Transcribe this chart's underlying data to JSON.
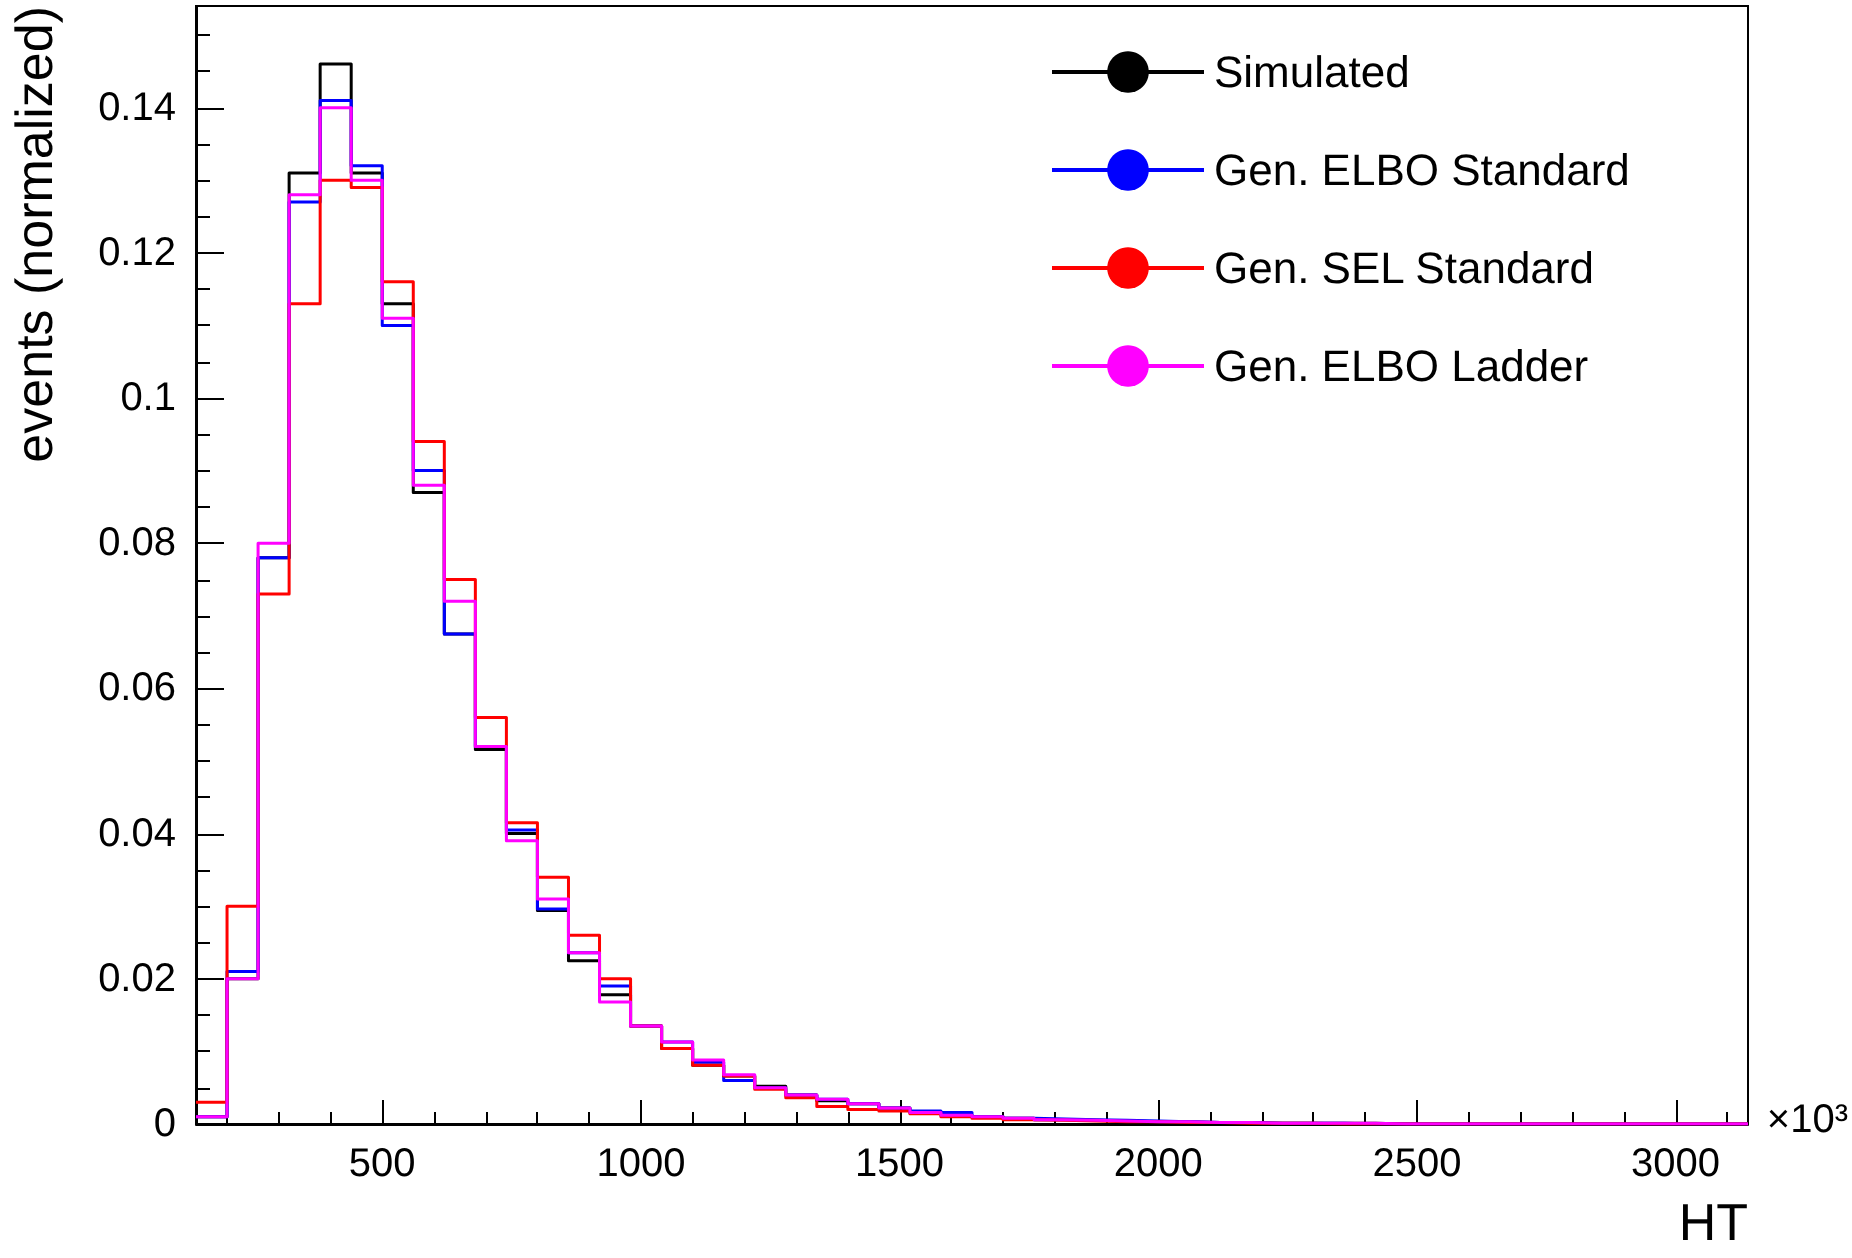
{
  "chart_data": {
    "type": "histogram",
    "xlabel": "HT",
    "ylabel": "events (normalized)",
    "annotations": [
      "×10³"
    ],
    "bins": [
      140,
      200,
      260,
      320,
      380,
      440,
      500,
      560,
      620,
      680,
      740,
      800,
      860,
      920,
      980,
      1040,
      1100,
      1160,
      1220,
      1280,
      1340,
      1400,
      1460,
      1520,
      1580,
      1640,
      1700,
      1760,
      1820,
      1880,
      1940,
      2000,
      2060,
      2120,
      2180,
      2240,
      2300,
      2360,
      2420,
      2480,
      2540,
      2600,
      2660,
      2720,
      2780,
      2840,
      2900,
      2960,
      3020,
      3080,
      3140
    ],
    "series": [
      {
        "name": "Simulated",
        "color": "#000000",
        "values": [
          0.001,
          0.02,
          0.078,
          0.131,
          0.146,
          0.131,
          0.113,
          0.087,
          0.0675,
          0.0516,
          0.04,
          0.0294,
          0.0225,
          0.0178,
          0.0135,
          0.0104,
          0.0081,
          0.0066,
          0.0052,
          0.004,
          0.0032,
          0.0028,
          0.0022,
          0.0016,
          0.0012,
          0.001,
          0.0008,
          0.0006,
          0.0005,
          0.0004,
          0.0003,
          0.0003,
          0.0002,
          0.0002,
          0.0001,
          0.0001,
          0.0001,
          0.0001,
          0,
          0,
          0,
          0,
          0,
          0,
          0,
          0,
          0,
          0,
          0,
          0
        ]
      },
      {
        "name": "Gen. ELBO Standard",
        "color": "#0000ff",
        "values": [
          0.001,
          0.021,
          0.078,
          0.127,
          0.141,
          0.132,
          0.11,
          0.09,
          0.0675,
          0.052,
          0.0405,
          0.0296,
          0.0236,
          0.019,
          0.0135,
          0.0113,
          0.0085,
          0.006,
          0.005,
          0.004,
          0.0034,
          0.0028,
          0.0022,
          0.0018,
          0.0016,
          0.001,
          0.0008,
          0.0007,
          0.0006,
          0.0005,
          0.0004,
          0.0003,
          0.0002,
          0.0002,
          0.0001,
          0.0001,
          0.0001,
          0,
          0,
          0,
          0,
          0,
          0,
          0,
          0,
          0,
          0,
          0,
          0,
          0
        ]
      },
      {
        "name": "Gen. SEL Standard",
        "color": "#ff0000",
        "values": [
          0.003,
          0.03,
          0.073,
          0.113,
          0.13,
          0.129,
          0.116,
          0.094,
          0.075,
          0.056,
          0.0415,
          0.034,
          0.026,
          0.02,
          0.0135,
          0.0104,
          0.0081,
          0.0066,
          0.0048,
          0.0036,
          0.0024,
          0.002,
          0.0018,
          0.0014,
          0.001,
          0.0008,
          0.0006,
          0.0005,
          0.0004,
          0.0003,
          0.0003,
          0.0002,
          0.0002,
          0.0001,
          0.0001,
          0.0001,
          0,
          0,
          0,
          0,
          0,
          0,
          0,
          0,
          0,
          0,
          0,
          0,
          0,
          0
        ]
      },
      {
        "name": "Gen. ELBO Ladder",
        "color": "#ff00ff",
        "values": [
          0.001,
          0.02,
          0.08,
          0.128,
          0.14,
          0.13,
          0.111,
          0.088,
          0.072,
          0.052,
          0.039,
          0.031,
          0.0236,
          0.0168,
          0.0135,
          0.0113,
          0.0088,
          0.0068,
          0.005,
          0.004,
          0.0034,
          0.0028,
          0.0022,
          0.0016,
          0.0012,
          0.001,
          0.0008,
          0.0006,
          0.0005,
          0.0004,
          0.0003,
          0.0003,
          0.0002,
          0.0002,
          0.0001,
          0.0001,
          0.0001,
          0.0001,
          0,
          0,
          0,
          0,
          0,
          0,
          0,
          0,
          0,
          0,
          0,
          0
        ]
      }
    ],
    "xlim": [
      140,
      3140
    ],
    "xticks": [
      500,
      1000,
      1500,
      2000,
      2500,
      3000
    ],
    "ylim": [
      0,
      0.154
    ],
    "yticks": [
      0,
      0.02,
      0.04,
      0.06,
      0.08,
      0.1,
      0.12,
      0.14
    ],
    "grid": false,
    "legend": "top right"
  }
}
